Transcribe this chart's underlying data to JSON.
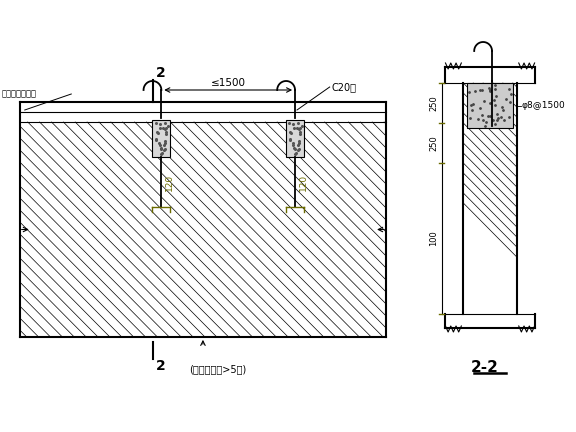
{
  "bg_color": "#ffffff",
  "line_color": "#000000",
  "green_color": "#6b6b00",
  "title_note": "(用于墙长跨>5米)",
  "section_label": "2-2",
  "dim_1500": "≤1500",
  "label_c20": "C20桃",
  "label_wall": "墙顶按左图顶砌",
  "label_120a": "120",
  "label_120b": "120",
  "label_phi": "φ8@1500",
  "label_100": "100",
  "label_250a": "250",
  "label_250b": "250",
  "section_num": "2"
}
